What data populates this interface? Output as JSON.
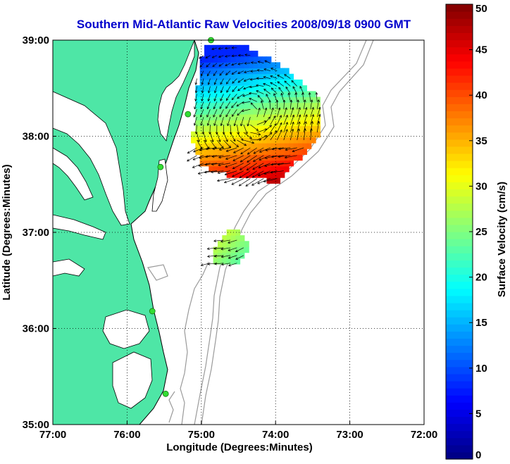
{
  "title": "Southern Mid-Atlantic Raw Velocities 2008/09/18 0900 GMT",
  "map": {
    "x_label": "Longitude (Degrees:Minutes)",
    "y_label": "Latitude (Degrees:Minutes)",
    "lon_range": [
      -77,
      -72
    ],
    "lat_range": [
      35,
      39
    ],
    "lon_ticks": [
      {
        "value": -77,
        "label": "77:00"
      },
      {
        "value": -76,
        "label": "76:00"
      },
      {
        "value": -75,
        "label": "75:00"
      },
      {
        "value": -74,
        "label": "74:00"
      },
      {
        "value": -73,
        "label": "73:00"
      },
      {
        "value": -72,
        "label": "72:00"
      }
    ],
    "lat_ticks": [
      {
        "value": 39,
        "label": "39:00"
      },
      {
        "value": 38,
        "label": "38:00"
      },
      {
        "value": 37,
        "label": "37:00"
      },
      {
        "value": 36,
        "label": "36:00"
      },
      {
        "value": 35,
        "label": "35:00"
      }
    ],
    "grid": "dotted",
    "colors": {
      "land": "#4ee6a6",
      "ocean": "#ffffff",
      "bathymetry": "#9a9a9a",
      "coastline": "#000000",
      "station_marker": "#33dd33",
      "title": "#0000cc"
    },
    "stations": [
      {
        "lon": -74.87,
        "lat": 39.0
      },
      {
        "lon": -75.18,
        "lat": 38.23
      },
      {
        "lon": -75.55,
        "lat": 37.68
      },
      {
        "lon": -75.66,
        "lat": 36.18
      },
      {
        "lon": -75.48,
        "lat": 35.32
      }
    ]
  },
  "colorbar": {
    "label": "Surface Velocity (cm/s)",
    "min": 0,
    "max": 50,
    "ticks": [
      0,
      5,
      10,
      15,
      20,
      25,
      30,
      35,
      40,
      45,
      50
    ],
    "colormap": "jet"
  },
  "chart_data": {
    "type": "heatmap",
    "title": "Southern Mid-Atlantic Raw Velocities 2008/09/18 0900 GMT",
    "xlabel": "Longitude (Degrees:Minutes)",
    "ylabel": "Latitude (Degrees:Minutes)",
    "xlim": [
      -77,
      -72
    ],
    "ylim": [
      35,
      39
    ],
    "value_units": "cm/s",
    "value_range": [
      0,
      50
    ],
    "regions": [
      {
        "name": "",
        "speed_cm_s_approx": [
          8,
          50
        ],
        "lon_span": [
          -75.0,
          -73.3
        ],
        "lat_span": [
          37.5,
          38.9
        ]
      },
      {
        "name": "",
        "speed_cm_s_approx": [
          20,
          35
        ],
        "lon_span": [
          -74.9,
          -74.4
        ],
        "lat_span": [
          36.6,
          37.0
        ]
      }
    ]
  }
}
